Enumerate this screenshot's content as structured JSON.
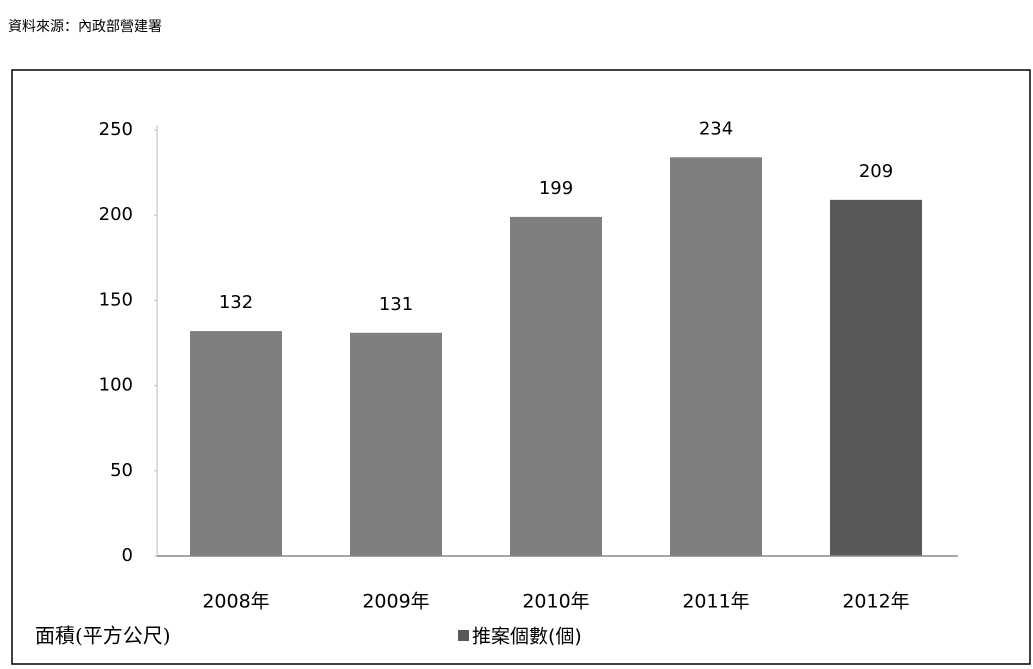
{
  "source": "資料來源：內政部營建署",
  "chart_data": {
    "type": "bar",
    "annotation": "面積(平方公尺)",
    "categories": [
      "2008年",
      "2009年",
      "2010年",
      "2011年",
      "2012年"
    ],
    "series": [
      {
        "name": "推案個數(個)",
        "color": "#7f7f7f",
        "legend_color": "#595959",
        "bar_colors": [
          "#7f7f7f",
          "#7f7f7f",
          "#7f7f7f",
          "#7f7f7f",
          "#595959"
        ],
        "values": [
          132,
          131,
          199,
          234,
          209
        ]
      }
    ],
    "ylim": [
      0,
      250
    ],
    "yticks": [
      0,
      50,
      100,
      150,
      200,
      250
    ],
    "grid": false
  }
}
